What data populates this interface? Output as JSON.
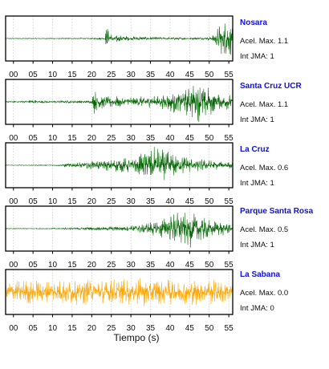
{
  "figure": {
    "xlabel": "Tiempo (s)"
  },
  "stations": [
    {
      "name": "Nosara",
      "acel_label": "Acel. Max. 1.1",
      "jma_label": "Int JMA: 1",
      "color": "#006400"
    },
    {
      "name": "Santa Cruz UCR",
      "acel_label": "Acel. Max. 1.1",
      "jma_label": "Int JMA: 1",
      "color": "#006400"
    },
    {
      "name": "La Cruz",
      "acel_label": "Acel. Max. 0.6",
      "jma_label": "Int JMA: 1",
      "color": "#006400"
    },
    {
      "name": "Parque Santa Rosa",
      "acel_label": "Acel. Max. 0.5",
      "jma_label": "Int JMA: 1",
      "color": "#006400"
    },
    {
      "name": "La Sabana",
      "acel_label": "Acel. Max. 0.0",
      "jma_label": "Int JMA: 0",
      "color": "#FFA500"
    }
  ],
  "chart_data": {
    "type": "line",
    "title": "",
    "xlabel": "Tiempo (s)",
    "ylabel": "",
    "xlim": [
      -2,
      56
    ],
    "x_ticks": [
      0,
      5,
      10,
      15,
      20,
      25,
      30,
      35,
      40,
      45,
      50,
      55
    ],
    "x_tick_labels": [
      "00",
      "05",
      "10",
      "15",
      "20",
      "25",
      "30",
      "35",
      "40",
      "45",
      "50",
      "55"
    ],
    "grid": true,
    "series": [
      {
        "name": "Nosara",
        "color": "#006400",
        "envelope": [
          [
            -2,
            0.02
          ],
          [
            20,
            0.03
          ],
          [
            22,
            0.06
          ],
          [
            23.3,
            0.05
          ],
          [
            23.8,
            0.7
          ],
          [
            24.5,
            0.3
          ],
          [
            27,
            0.2
          ],
          [
            29,
            0.12
          ],
          [
            32,
            0.1
          ],
          [
            36,
            0.07
          ],
          [
            40,
            0.06
          ],
          [
            45,
            0.06
          ],
          [
            48,
            0.06
          ],
          [
            50,
            0.08
          ],
          [
            51,
            0.25
          ],
          [
            52,
            0.5
          ],
          [
            53,
            0.8
          ],
          [
            54,
            1.0
          ],
          [
            55,
            0.85
          ],
          [
            56,
            0.9
          ]
        ]
      },
      {
        "name": "Santa Cruz UCR",
        "color": "#006400",
        "envelope": [
          [
            -2,
            0.04
          ],
          [
            3,
            0.05
          ],
          [
            5,
            0.15
          ],
          [
            6,
            0.06
          ],
          [
            10,
            0.06
          ],
          [
            15,
            0.07
          ],
          [
            20,
            0.08
          ],
          [
            20.5,
            0.6
          ],
          [
            21.5,
            0.5
          ],
          [
            23,
            0.35
          ],
          [
            26,
            0.3
          ],
          [
            30,
            0.25
          ],
          [
            35,
            0.3
          ],
          [
            38,
            0.35
          ],
          [
            41,
            0.55
          ],
          [
            44,
            0.65
          ],
          [
            46,
            0.85
          ],
          [
            47.5,
            1.0
          ],
          [
            49,
            0.8
          ],
          [
            51,
            0.6
          ],
          [
            54,
            0.4
          ],
          [
            56,
            0.35
          ]
        ]
      },
      {
        "name": "La Cruz",
        "color": "#006400",
        "envelope": [
          [
            -2,
            0.02
          ],
          [
            5,
            0.02
          ],
          [
            12,
            0.03
          ],
          [
            13,
            0.1
          ],
          [
            16,
            0.15
          ],
          [
            20,
            0.2
          ],
          [
            25,
            0.3
          ],
          [
            30,
            0.4
          ],
          [
            33,
            0.6
          ],
          [
            35,
            0.85
          ],
          [
            36,
            1.0
          ],
          [
            37,
            0.9
          ],
          [
            39,
            0.7
          ],
          [
            41,
            0.6
          ],
          [
            43,
            0.5
          ],
          [
            46,
            0.35
          ],
          [
            50,
            0.25
          ],
          [
            53,
            0.2
          ],
          [
            56,
            0.15
          ]
        ]
      },
      {
        "name": "Parque Santa Rosa",
        "color": "#006400",
        "envelope": [
          [
            -2,
            0.02
          ],
          [
            8,
            0.02
          ],
          [
            14,
            0.05
          ],
          [
            18,
            0.08
          ],
          [
            22,
            0.1
          ],
          [
            27,
            0.12
          ],
          [
            30,
            0.15
          ],
          [
            34,
            0.3
          ],
          [
            37,
            0.45
          ],
          [
            40,
            0.7
          ],
          [
            42,
            0.85
          ],
          [
            44,
            1.0
          ],
          [
            45.5,
            0.95
          ],
          [
            47,
            0.8
          ],
          [
            49,
            0.6
          ],
          [
            52,
            0.4
          ],
          [
            55,
            0.3
          ],
          [
            56,
            0.25
          ]
        ]
      },
      {
        "name": "La Sabana",
        "color": "#FFA500",
        "envelope": [
          [
            -2,
            0.55
          ],
          [
            5,
            0.6
          ],
          [
            10,
            0.6
          ],
          [
            15,
            0.65
          ],
          [
            20,
            0.62
          ],
          [
            25,
            0.7
          ],
          [
            30,
            0.65
          ],
          [
            35,
            0.7
          ],
          [
            40,
            0.65
          ],
          [
            45,
            0.68
          ],
          [
            50,
            0.62
          ],
          [
            56,
            0.6
          ]
        ]
      }
    ]
  }
}
